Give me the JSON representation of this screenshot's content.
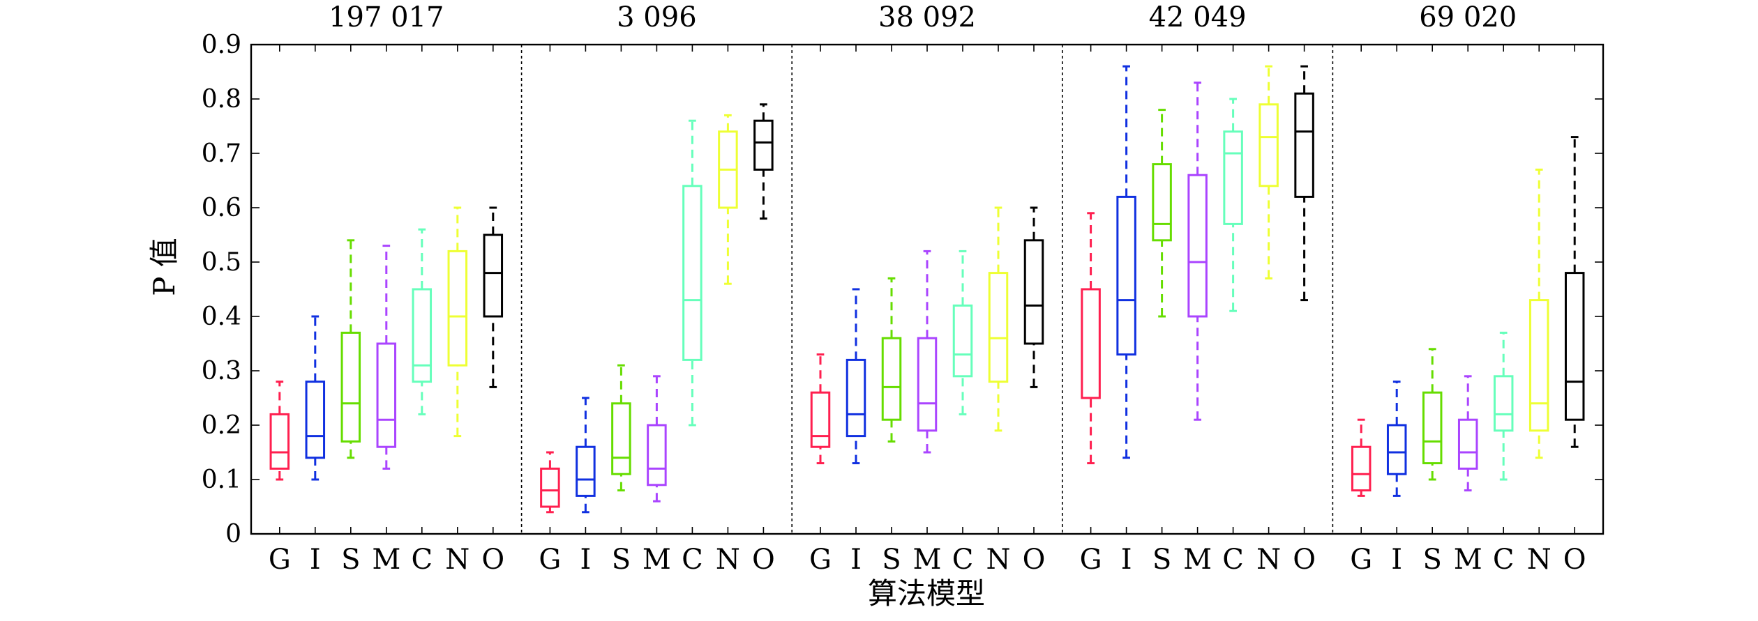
{
  "chart_data": {
    "type": "box",
    "ylabel": "P 值",
    "xlabel": "算法模型",
    "ylim": [
      0,
      0.9
    ],
    "yticks": [
      "0",
      "0.1",
      "0.2",
      "0.3",
      "0.4",
      "0.5",
      "0.6",
      "0.7",
      "0.8",
      "0.9"
    ],
    "categories": [
      "G",
      "I",
      "S",
      "M",
      "C",
      "N",
      "O"
    ],
    "colors": [
      "#ff1f4f",
      "#1030e0",
      "#66dd00",
      "#aa44ff",
      "#66ffbb",
      "#eeff33",
      "#000000"
    ],
    "grid": false,
    "groups": [
      {
        "title": "197 017",
        "boxes": [
          {
            "whisker_low": 0.1,
            "q1": 0.12,
            "median": 0.15,
            "q3": 0.22,
            "whisker_high": 0.28
          },
          {
            "whisker_low": 0.1,
            "q1": 0.14,
            "median": 0.18,
            "q3": 0.28,
            "whisker_high": 0.4
          },
          {
            "whisker_low": 0.14,
            "q1": 0.17,
            "median": 0.24,
            "q3": 0.37,
            "whisker_high": 0.54
          },
          {
            "whisker_low": 0.12,
            "q1": 0.16,
            "median": 0.21,
            "q3": 0.35,
            "whisker_high": 0.53
          },
          {
            "whisker_low": 0.22,
            "q1": 0.28,
            "median": 0.31,
            "q3": 0.45,
            "whisker_high": 0.56
          },
          {
            "whisker_low": 0.18,
            "q1": 0.31,
            "median": 0.4,
            "q3": 0.52,
            "whisker_high": 0.6
          },
          {
            "whisker_low": 0.27,
            "q1": 0.4,
            "median": 0.48,
            "q3": 0.55,
            "whisker_high": 0.6
          }
        ]
      },
      {
        "title": "3 096",
        "boxes": [
          {
            "whisker_low": 0.04,
            "q1": 0.05,
            "median": 0.08,
            "q3": 0.12,
            "whisker_high": 0.15
          },
          {
            "whisker_low": 0.04,
            "q1": 0.07,
            "median": 0.1,
            "q3": 0.16,
            "whisker_high": 0.25
          },
          {
            "whisker_low": 0.08,
            "q1": 0.11,
            "median": 0.14,
            "q3": 0.24,
            "whisker_high": 0.31
          },
          {
            "whisker_low": 0.06,
            "q1": 0.09,
            "median": 0.12,
            "q3": 0.2,
            "whisker_high": 0.29
          },
          {
            "whisker_low": 0.2,
            "q1": 0.32,
            "median": 0.43,
            "q3": 0.64,
            "whisker_high": 0.76
          },
          {
            "whisker_low": 0.46,
            "q1": 0.6,
            "median": 0.67,
            "q3": 0.74,
            "whisker_high": 0.77
          },
          {
            "whisker_low": 0.58,
            "q1": 0.67,
            "median": 0.72,
            "q3": 0.76,
            "whisker_high": 0.79
          }
        ]
      },
      {
        "title": "38 092",
        "boxes": [
          {
            "whisker_low": 0.13,
            "q1": 0.16,
            "median": 0.18,
            "q3": 0.26,
            "whisker_high": 0.33
          },
          {
            "whisker_low": 0.13,
            "q1": 0.18,
            "median": 0.22,
            "q3": 0.32,
            "whisker_high": 0.45
          },
          {
            "whisker_low": 0.17,
            "q1": 0.21,
            "median": 0.27,
            "q3": 0.36,
            "whisker_high": 0.47
          },
          {
            "whisker_low": 0.15,
            "q1": 0.19,
            "median": 0.24,
            "q3": 0.36,
            "whisker_high": 0.52
          },
          {
            "whisker_low": 0.22,
            "q1": 0.29,
            "median": 0.33,
            "q3": 0.42,
            "whisker_high": 0.52
          },
          {
            "whisker_low": 0.19,
            "q1": 0.28,
            "median": 0.36,
            "q3": 0.48,
            "whisker_high": 0.6
          },
          {
            "whisker_low": 0.27,
            "q1": 0.35,
            "median": 0.42,
            "q3": 0.54,
            "whisker_high": 0.6
          }
        ]
      },
      {
        "title": "42 049",
        "boxes": [
          {
            "whisker_low": 0.13,
            "q1": 0.25,
            "median": 0.25,
            "q3": 0.45,
            "whisker_high": 0.59
          },
          {
            "whisker_low": 0.14,
            "q1": 0.33,
            "median": 0.43,
            "q3": 0.62,
            "whisker_high": 0.86
          },
          {
            "whisker_low": 0.4,
            "q1": 0.54,
            "median": 0.57,
            "q3": 0.68,
            "whisker_high": 0.78
          },
          {
            "whisker_low": 0.21,
            "q1": 0.4,
            "median": 0.5,
            "q3": 0.66,
            "whisker_high": 0.83
          },
          {
            "whisker_low": 0.41,
            "q1": 0.57,
            "median": 0.7,
            "q3": 0.74,
            "whisker_high": 0.8
          },
          {
            "whisker_low": 0.47,
            "q1": 0.64,
            "median": 0.73,
            "q3": 0.79,
            "whisker_high": 0.86
          },
          {
            "whisker_low": 0.43,
            "q1": 0.62,
            "median": 0.74,
            "q3": 0.81,
            "whisker_high": 0.86
          }
        ]
      },
      {
        "title": "69 020",
        "boxes": [
          {
            "whisker_low": 0.07,
            "q1": 0.08,
            "median": 0.11,
            "q3": 0.16,
            "whisker_high": 0.21
          },
          {
            "whisker_low": 0.07,
            "q1": 0.11,
            "median": 0.15,
            "q3": 0.2,
            "whisker_high": 0.28
          },
          {
            "whisker_low": 0.1,
            "q1": 0.13,
            "median": 0.17,
            "q3": 0.26,
            "whisker_high": 0.34
          },
          {
            "whisker_low": 0.08,
            "q1": 0.12,
            "median": 0.15,
            "q3": 0.21,
            "whisker_high": 0.29
          },
          {
            "whisker_low": 0.1,
            "q1": 0.19,
            "median": 0.22,
            "q3": 0.29,
            "whisker_high": 0.37
          },
          {
            "whisker_low": 0.14,
            "q1": 0.19,
            "median": 0.24,
            "q3": 0.43,
            "whisker_high": 0.67
          },
          {
            "whisker_low": 0.16,
            "q1": 0.21,
            "median": 0.28,
            "q3": 0.48,
            "whisker_high": 0.73
          }
        ]
      }
    ]
  }
}
